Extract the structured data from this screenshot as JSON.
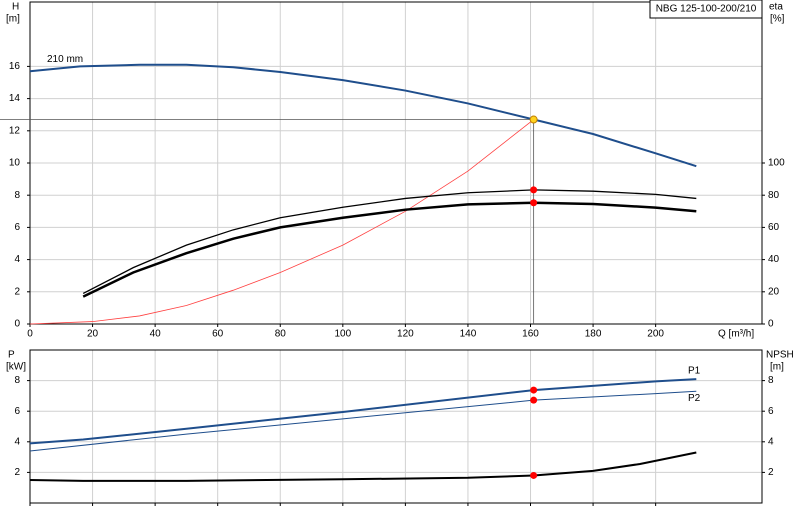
{
  "chart_data": [
    {
      "type": "line",
      "title": "NBG 125-100-200/210",
      "ylabel": "H",
      "yunit": "[m]",
      "y2label": "eta",
      "y2unit": "[%]",
      "xlabel": "Q [m³/h]",
      "xlim": [
        0,
        234
      ],
      "xticks": [
        0,
        20,
        40,
        60,
        80,
        100,
        120,
        140,
        160,
        180,
        200
      ],
      "ylim": [
        0,
        20
      ],
      "yticks": [
        0,
        2,
        4,
        6,
        8,
        10,
        12,
        14,
        16
      ],
      "y2lim": [
        0,
        200
      ],
      "y2ticks": [
        0,
        20,
        40,
        60,
        80,
        100
      ],
      "grid": true,
      "duty_q": 161,
      "series": [
        {
          "name": "210 mm",
          "color": "#1f4e8c",
          "width": 2,
          "marker_color": "#ffd21f",
          "x": [
            0,
            16,
            35,
            50,
            65,
            80,
            100,
            120,
            140,
            161,
            180,
            200,
            213
          ],
          "values": [
            15.7,
            16.0,
            16.1,
            16.1,
            15.95,
            15.65,
            15.15,
            14.5,
            13.7,
            12.7,
            11.8,
            10.6,
            9.8
          ]
        },
        {
          "color": "#ff4040",
          "width": 0.8,
          "x": [
            0,
            20,
            35,
            50,
            65,
            80,
            100,
            120,
            140,
            161
          ],
          "values": [
            0,
            0.15,
            0.5,
            1.15,
            2.1,
            3.2,
            4.9,
            7.0,
            9.5,
            12.7
          ]
        },
        {
          "color": "#000000",
          "width": 1.3,
          "axis": "y2",
          "marker_color": "#ff0000",
          "x": [
            17,
            33,
            50,
            65,
            80,
            100,
            120,
            140,
            161,
            180,
            200,
            213
          ],
          "values": [
            19,
            35,
            49,
            58.5,
            66,
            72.5,
            78,
            81.5,
            83.3,
            82.5,
            80.5,
            78
          ]
        },
        {
          "color": "#000000",
          "width": 2.5,
          "axis": "y2",
          "marker_color": "#ff0000",
          "x": [
            17,
            33,
            50,
            65,
            80,
            100,
            120,
            140,
            161,
            180,
            200,
            213
          ],
          "values": [
            17,
            32,
            44,
            53,
            60,
            66,
            71,
            74.3,
            75.3,
            74.5,
            72.3,
            70
          ]
        }
      ]
    },
    {
      "type": "line",
      "ylabel": "P",
      "yunit": "[kW]",
      "y2label": "NPSH",
      "y2unit": "[m]",
      "xlim": [
        0,
        234
      ],
      "xticks": [
        0,
        20,
        40,
        60,
        80,
        100,
        120,
        140,
        160,
        180,
        200
      ],
      "xtick_labels": false,
      "ylim": [
        0,
        10
      ],
      "yticks": [
        2,
        4,
        6,
        8
      ],
      "y2lim": [
        0,
        10
      ],
      "y2ticks": [
        2,
        4,
        6,
        8
      ],
      "grid": true,
      "duty_q": 161,
      "series": [
        {
          "name": "P1",
          "color": "#1f4e8c",
          "width": 2,
          "marker_color": "#ff0000",
          "x": [
            0,
            17,
            50,
            100,
            161,
            200,
            213
          ],
          "values": [
            3.9,
            4.15,
            4.85,
            5.95,
            7.38,
            7.95,
            8.1
          ]
        },
        {
          "name": "P2",
          "color": "#1f4e8c",
          "width": 1,
          "marker_color": "#ff0000",
          "x": [
            0,
            50,
            100,
            161,
            200,
            213
          ],
          "values": [
            3.4,
            4.5,
            5.5,
            6.72,
            7.15,
            7.3
          ]
        },
        {
          "color": "#000000",
          "width": 2,
          "axis": "y2",
          "marker_color": "#ff0000",
          "x": [
            0,
            17,
            50,
            100,
            140,
            161,
            180,
            195,
            213
          ],
          "values": [
            1.5,
            1.45,
            1.45,
            1.55,
            1.65,
            1.8,
            2.1,
            2.55,
            3.3
          ]
        }
      ]
    }
  ]
}
